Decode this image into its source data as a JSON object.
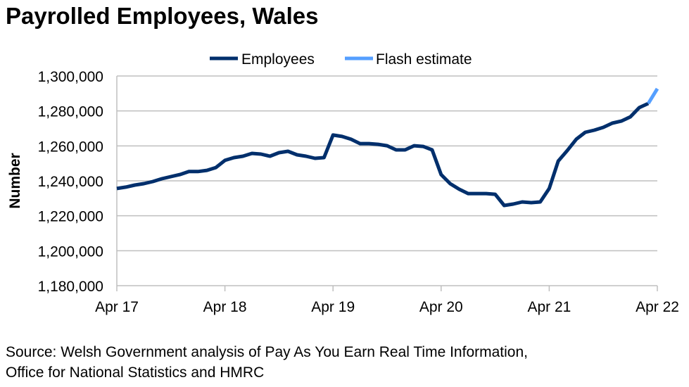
{
  "chart_data": {
    "type": "line",
    "title": "Payrolled Employees, Wales",
    "xlabel": "",
    "ylabel": "Number",
    "ylim": [
      1180000,
      1300000
    ],
    "yticks": [
      1180000,
      1200000,
      1220000,
      1240000,
      1260000,
      1280000,
      1300000
    ],
    "ytick_labels": [
      "1,180,000",
      "1,200,000",
      "1,220,000",
      "1,240,000",
      "1,260,000",
      "1,280,000",
      "1,300,000"
    ],
    "xtick_labels": [
      "Apr 17",
      "Apr 18",
      "Apr 19",
      "Apr 20",
      "Apr 21",
      "Apr 22"
    ],
    "x_range_months": [
      0,
      60
    ],
    "grid": true,
    "legend_position": "top-center",
    "series": [
      {
        "name": "Employees",
        "color": "#002F6C",
        "start_month": 0,
        "values": [
          1235600,
          1236400,
          1237600,
          1238400,
          1239600,
          1241200,
          1242400,
          1243600,
          1245300,
          1245300,
          1246000,
          1247600,
          1251700,
          1253300,
          1254100,
          1255700,
          1255300,
          1254100,
          1256100,
          1256900,
          1254900,
          1254100,
          1252900,
          1253300,
          1266200,
          1265400,
          1263800,
          1261300,
          1261300,
          1260900,
          1260100,
          1257700,
          1257700,
          1260100,
          1259700,
          1257700,
          1243600,
          1238400,
          1235200,
          1232700,
          1232700,
          1232700,
          1232300,
          1225900,
          1226700,
          1227900,
          1227500,
          1227900,
          1235600,
          1251300,
          1257300,
          1263800,
          1267800,
          1269000,
          1270600,
          1273000,
          1274200,
          1276600,
          1281900,
          1284300
        ]
      },
      {
        "name": "Flash estimate",
        "color": "#559FFF",
        "start_month": 59,
        "values": [
          1284300,
          1292700
        ]
      }
    ]
  },
  "source": {
    "line1": "Source: Welsh Government analysis of Pay As You Earn Real Time Information,",
    "line2": "Office for National Statistics and HMRC"
  }
}
